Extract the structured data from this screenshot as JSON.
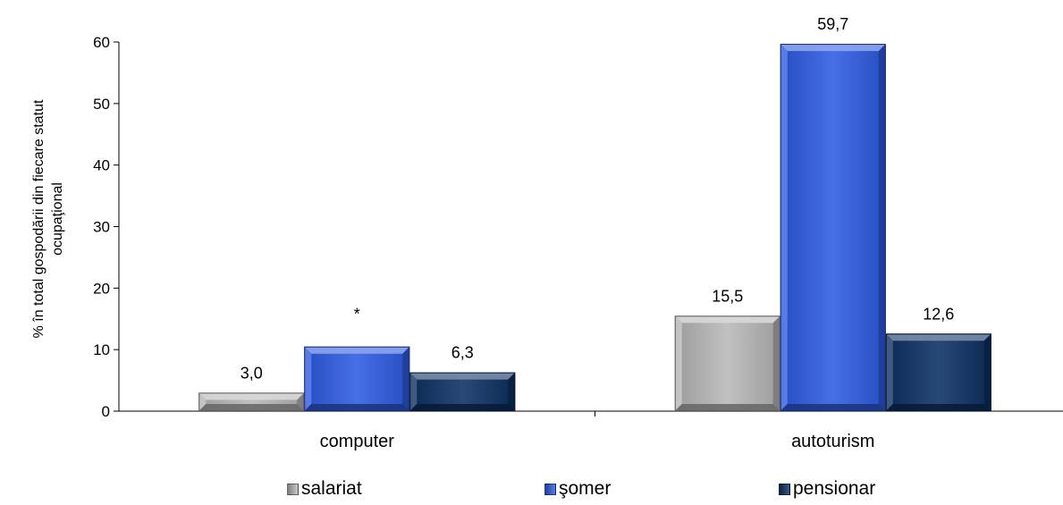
{
  "chart_data": {
    "type": "bar",
    "title": "",
    "xlabel": "",
    "ylabel": "% în total gospodării din fiecare statut ocupaţional",
    "ylim": [
      0,
      60
    ],
    "yticks": [
      0,
      10,
      20,
      30,
      40,
      50,
      60
    ],
    "categories": [
      "computer",
      "autoturism"
    ],
    "series": [
      {
        "name": "salariat",
        "color": "#b8b8b8",
        "values": [
          3.0,
          15.5
        ],
        "labels": [
          "3,0",
          "15,5"
        ]
      },
      {
        "name": "şomer",
        "color": "#2e5be3",
        "values": [
          10.5,
          59.7
        ],
        "labels": [
          "*",
          "59,7"
        ]
      },
      {
        "name": "pensionar",
        "color": "#0c3062",
        "values": [
          6.3,
          12.6
        ],
        "labels": [
          "6,3",
          "12,6"
        ]
      }
    ],
    "legend_position": "bottom",
    "grid": false
  }
}
